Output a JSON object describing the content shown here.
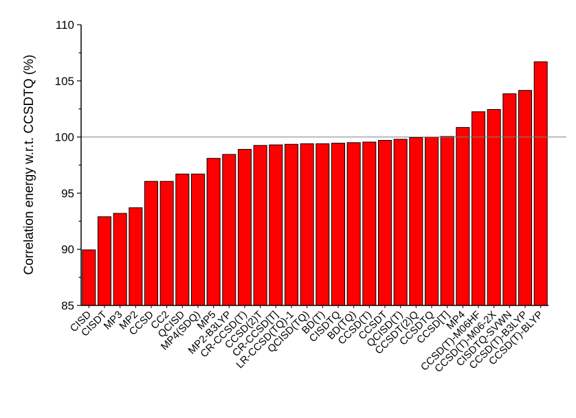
{
  "chart_data": {
    "type": "bar",
    "title": "",
    "xlabel": "",
    "ylabel": "Correlation energy w.r.t. CCSDTQ (%)",
    "ylim": [
      85,
      110
    ],
    "yticks": [
      "85",
      "90",
      "95",
      "100",
      "105",
      "110"
    ],
    "reference_line": 100,
    "bar_color": "#ff0000",
    "categories": [
      "CISD",
      "CISDT",
      "MP3",
      "MP2",
      "CCSD",
      "CC2",
      "QCISD",
      "MP4(SDQ)",
      "MP5",
      "MP2-B3LYP",
      "CR-CCSD(T)",
      "CCSD(2)T",
      "CR-CCSD[T]",
      "LR-CCSD(TQ)-1",
      "QCISD(TQ)",
      "BD(T)",
      "CISDTQ",
      "BD(TQ)",
      "CCSD(T)",
      "CCSDT",
      "QCISD(T)",
      "CCSDT(2)Q",
      "CCSDTQ",
      "CCSD[T]",
      "MP4",
      "CCSD(T)-M06HF",
      "CCSD(T)-M06-2X",
      "CISDTQ-SVWN",
      "CCSD(T)-B3LYP",
      "CCSD(T)-BLYP"
    ],
    "values": [
      89.95,
      92.9,
      93.2,
      93.7,
      96.05,
      96.05,
      96.7,
      96.7,
      98.1,
      98.45,
      98.9,
      99.25,
      99.3,
      99.35,
      99.4,
      99.4,
      99.45,
      99.5,
      99.55,
      99.7,
      99.8,
      99.95,
      100.0,
      100.05,
      100.85,
      102.25,
      102.45,
      103.85,
      104.15,
      106.7
    ]
  }
}
